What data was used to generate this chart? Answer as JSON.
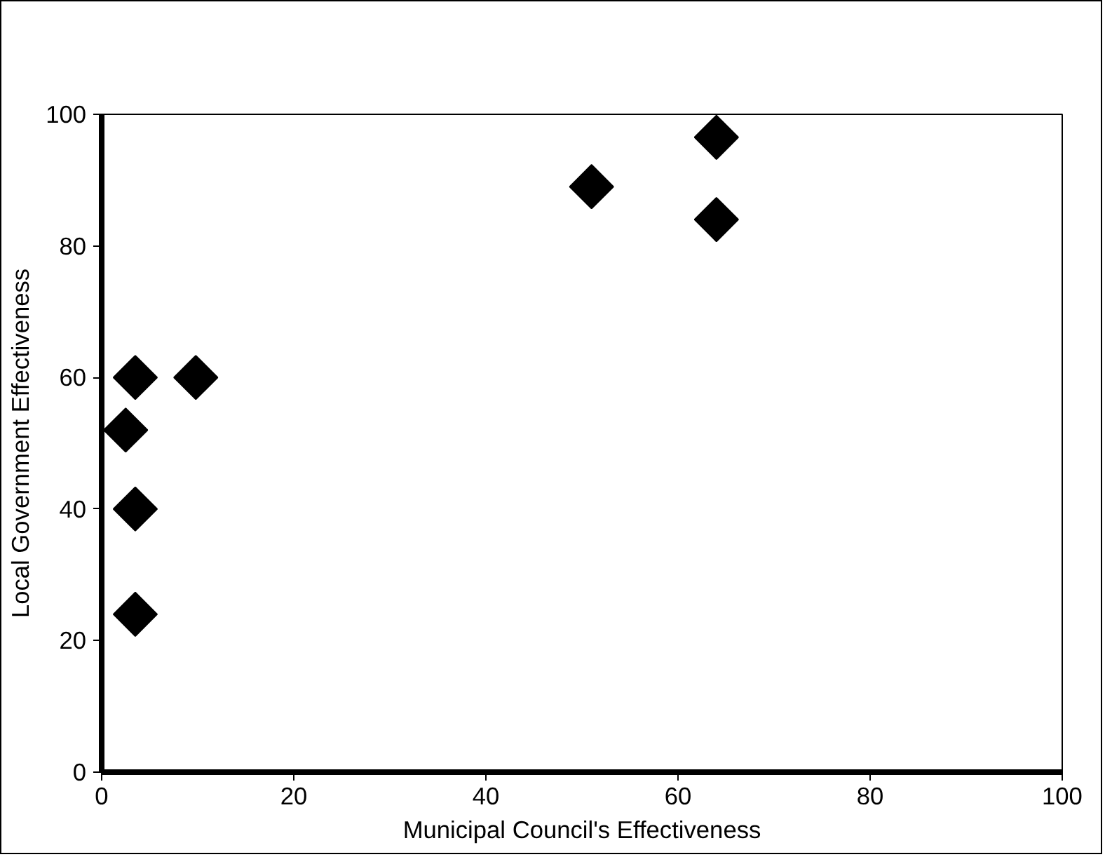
{
  "chart_data": {
    "type": "scatter",
    "xlabel": "Municipal Council's Effectiveness",
    "ylabel": "Local Government Effectiveness",
    "x": [
      51,
      64,
      64,
      3.5,
      9.8,
      2.5,
      3.5,
      3.5
    ],
    "series": [
      {
        "color": "#000000",
        "values": [
          89,
          96.5,
          84,
          60,
          60,
          52,
          40,
          24
        ]
      }
    ],
    "xlim": [
      0,
      100
    ],
    "ylim": [
      0,
      100
    ],
    "xticks": [
      0,
      20,
      40,
      60,
      80,
      100
    ],
    "yticks": [
      0,
      20,
      40,
      60,
      80,
      100
    ],
    "marker": "diamond",
    "grid": false
  }
}
